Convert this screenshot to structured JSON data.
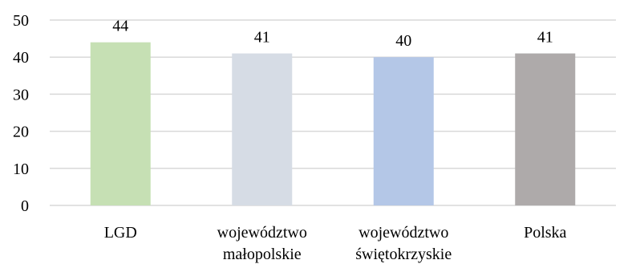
{
  "chart_data": {
    "type": "bar",
    "categories": [
      [
        "LGD"
      ],
      [
        "województwo",
        "małopolskie"
      ],
      [
        "województwo",
        "świętokrzyskie"
      ],
      [
        "Polska"
      ]
    ],
    "values": [
      44,
      41,
      40,
      41
    ],
    "data_labels": [
      "44",
      "41",
      "40",
      "41"
    ],
    "colors": [
      "#c6e0b4",
      "#d6dce5",
      "#b4c7e7",
      "#aeaaaa"
    ],
    "ylim": [
      0,
      50
    ],
    "yticks": [
      0,
      10,
      20,
      30,
      40,
      50
    ],
    "ytick_labels": [
      "0",
      "10",
      "20",
      "30",
      "40",
      "50"
    ],
    "grid": true,
    "legend": "none",
    "title": "",
    "xlabel": "",
    "ylabel": ""
  }
}
